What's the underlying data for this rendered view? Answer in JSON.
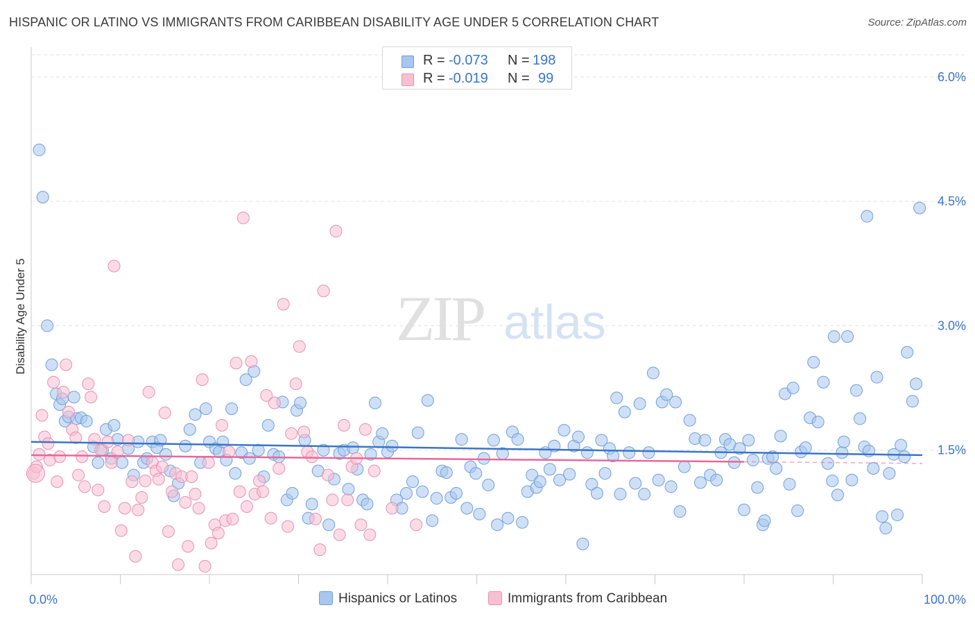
{
  "title": "HISPANIC OR LATINO VS IMMIGRANTS FROM CARIBBEAN DISABILITY AGE UNDER 5 CORRELATION CHART",
  "source": "Source: ZipAtlas.com",
  "watermark": {
    "zip": "ZIP",
    "atlas": "atlas"
  },
  "legend": {
    "rows": [
      {
        "r_label": "R =",
        "r_value": "-0.073",
        "n_label": "N =",
        "n_value": "198",
        "color": "#a8c6ee",
        "border": "#6f9fd8"
      },
      {
        "r_label": "R =",
        "r_value": "-0.019",
        "n_label": "N =",
        "n_value": "99",
        "color": "#f7c0d2",
        "border": "#e890ae"
      }
    ]
  },
  "bottom_legend": [
    {
      "label": "Hispanics or Latinos",
      "color": "#a8c6ee",
      "border": "#6f9fd8"
    },
    {
      "label": "Immigrants from Caribbean",
      "color": "#f7c0d2",
      "border": "#e890ae"
    }
  ],
  "chart_data": {
    "type": "scatter",
    "title": "HISPANIC OR LATINO VS IMMIGRANTS FROM CARIBBEAN DISABILITY AGE UNDER 5 CORRELATION CHART",
    "xlabel": "",
    "ylabel": "Disability Age Under 5",
    "xlim": [
      0,
      100
    ],
    "ylim": [
      0,
      6.3
    ],
    "x_tick_labels": {
      "left": "0.0%",
      "right": "100.0%"
    },
    "y_ticks": [
      {
        "value": 1.5,
        "label": "1.5%"
      },
      {
        "value": 3.0,
        "label": "3.0%"
      },
      {
        "value": 4.5,
        "label": "4.5%"
      },
      {
        "value": 6.0,
        "label": "6.0%"
      }
    ],
    "grid": true,
    "series": [
      {
        "name": "Hispanics or Latinos",
        "color": "#a8c6ee",
        "edge": "#6f9fd8",
        "trend": {
          "x0": 0,
          "y0": 1.6,
          "x1": 100,
          "y1": 1.44,
          "color": "#3a74c8"
        },
        "points": [
          [
            0.9,
            5.12
          ],
          [
            1.3,
            4.55
          ],
          [
            1.8,
            3.0
          ],
          [
            2.3,
            2.53
          ],
          [
            2.8,
            2.18
          ],
          [
            3.2,
            2.05
          ],
          [
            3.5,
            2.12
          ],
          [
            3.8,
            1.85
          ],
          [
            4.2,
            1.9
          ],
          [
            4.8,
            2.14
          ],
          [
            5.1,
            1.88
          ],
          [
            5.6,
            1.89
          ],
          [
            6.2,
            1.85
          ],
          [
            7.0,
            1.54
          ],
          [
            7.5,
            1.35
          ],
          [
            8.0,
            1.5
          ],
          [
            8.4,
            1.75
          ],
          [
            9.0,
            1.4
          ],
          [
            9.3,
            1.8
          ],
          [
            9.7,
            1.63
          ],
          [
            10.2,
            1.35
          ],
          [
            10.9,
            1.52
          ],
          [
            11.5,
            1.2
          ],
          [
            12.0,
            1.6
          ],
          [
            12.6,
            1.35
          ],
          [
            13.0,
            1.4
          ],
          [
            13.6,
            1.6
          ],
          [
            14.1,
            1.53
          ],
          [
            14.5,
            1.62
          ],
          [
            15.1,
            1.45
          ],
          [
            15.6,
            1.25
          ],
          [
            16.0,
            0.95
          ],
          [
            16.5,
            1.1
          ],
          [
            17.3,
            1.55
          ],
          [
            17.8,
            1.75
          ],
          [
            18.4,
            1.93
          ],
          [
            19.0,
            1.35
          ],
          [
            19.6,
            2.0
          ],
          [
            20.0,
            1.6
          ],
          [
            20.7,
            1.52
          ],
          [
            21.1,
            1.48
          ],
          [
            21.5,
            1.6
          ],
          [
            21.9,
            1.38
          ],
          [
            22.5,
            2.0
          ],
          [
            22.9,
            1.22
          ],
          [
            23.6,
            1.47
          ],
          [
            24.1,
            2.35
          ],
          [
            24.5,
            1.4
          ],
          [
            25.0,
            2.45
          ],
          [
            25.5,
            1.5
          ],
          [
            26.1,
            1.18
          ],
          [
            26.6,
            1.8
          ],
          [
            27.2,
            1.45
          ],
          [
            27.8,
            1.42
          ],
          [
            28.2,
            2.08
          ],
          [
            28.7,
            0.9
          ],
          [
            29.3,
            0.98
          ],
          [
            29.8,
            1.98
          ],
          [
            30.2,
            2.07
          ],
          [
            30.7,
            1.62
          ],
          [
            31.1,
            0.68
          ],
          [
            31.5,
            0.85
          ],
          [
            32.2,
            1.25
          ],
          [
            32.8,
            1.5
          ],
          [
            33.4,
            0.6
          ],
          [
            34.0,
            1.15
          ],
          [
            34.6,
            1.46
          ],
          [
            35.1,
            1.5
          ],
          [
            35.6,
            1.03
          ],
          [
            36.1,
            1.53
          ],
          [
            36.6,
            1.27
          ],
          [
            37.2,
            0.9
          ],
          [
            37.7,
            0.85
          ],
          [
            38.1,
            1.45
          ],
          [
            38.6,
            2.07
          ],
          [
            39.0,
            1.6
          ],
          [
            39.4,
            1.7
          ],
          [
            40.0,
            1.48
          ],
          [
            40.5,
            1.55
          ],
          [
            41.0,
            0.9
          ],
          [
            41.6,
            0.8
          ],
          [
            42.1,
            0.98
          ],
          [
            42.8,
            1.12
          ],
          [
            43.4,
            1.71
          ],
          [
            43.9,
            1.0
          ],
          [
            44.5,
            2.1
          ],
          [
            45.0,
            0.65
          ],
          [
            45.5,
            0.92
          ],
          [
            46.1,
            1.25
          ],
          [
            46.6,
            1.23
          ],
          [
            47.1,
            0.93
          ],
          [
            47.7,
            0.98
          ],
          [
            48.3,
            1.63
          ],
          [
            48.9,
            0.8
          ],
          [
            49.3,
            1.3
          ],
          [
            49.9,
            1.22
          ],
          [
            50.3,
            0.73
          ],
          [
            50.8,
            1.4
          ],
          [
            51.3,
            1.08
          ],
          [
            51.9,
            1.62
          ],
          [
            52.3,
            0.6
          ],
          [
            52.9,
            1.46
          ],
          [
            53.5,
            0.68
          ],
          [
            54.0,
            1.72
          ],
          [
            54.6,
            1.63
          ],
          [
            55.1,
            0.63
          ],
          [
            55.7,
            1.0
          ],
          [
            56.2,
            1.2
          ],
          [
            56.7,
            1.05
          ],
          [
            57.1,
            1.12
          ],
          [
            57.7,
            1.47
          ],
          [
            58.2,
            1.27
          ],
          [
            58.7,
            1.55
          ],
          [
            59.3,
            1.14
          ],
          [
            59.8,
            1.74
          ],
          [
            60.4,
            1.21
          ],
          [
            60.9,
            1.55
          ],
          [
            61.4,
            1.66
          ],
          [
            61.9,
            0.37
          ],
          [
            62.4,
            1.47
          ],
          [
            62.9,
            1.09
          ],
          [
            63.5,
            0.98
          ],
          [
            64.0,
            1.62
          ],
          [
            64.4,
            1.22
          ],
          [
            64.9,
            1.52
          ],
          [
            65.3,
            1.43
          ],
          [
            65.7,
            2.13
          ],
          [
            66.1,
            0.97
          ],
          [
            66.6,
            1.96
          ],
          [
            67.1,
            1.47
          ],
          [
            67.8,
            1.1
          ],
          [
            68.3,
            2.06
          ],
          [
            68.8,
            0.97
          ],
          [
            69.3,
            1.47
          ],
          [
            69.8,
            2.43
          ],
          [
            70.4,
            1.14
          ],
          [
            70.8,
            2.08
          ],
          [
            71.3,
            2.17
          ],
          [
            71.8,
            1.06
          ],
          [
            72.3,
            2.08
          ],
          [
            72.8,
            0.76
          ],
          [
            73.3,
            1.3
          ],
          [
            73.9,
            1.86
          ],
          [
            74.5,
            1.64
          ],
          [
            75.1,
            1.11
          ],
          [
            75.6,
            1.62
          ],
          [
            76.2,
            1.2
          ],
          [
            76.9,
            1.14
          ],
          [
            77.4,
            1.47
          ],
          [
            77.9,
            1.63
          ],
          [
            78.4,
            1.57
          ],
          [
            78.9,
            1.35
          ],
          [
            79.5,
            1.52
          ],
          [
            80.0,
            0.78
          ],
          [
            80.5,
            1.62
          ],
          [
            81.0,
            1.38
          ],
          [
            81.5,
            1.05
          ],
          [
            82.1,
            0.6
          ],
          [
            82.7,
            1.4
          ],
          [
            82.3,
            0.65
          ],
          [
            83.2,
            1.42
          ],
          [
            83.6,
            1.28
          ],
          [
            84.1,
            1.67
          ],
          [
            84.6,
            2.18
          ],
          [
            85.1,
            1.09
          ],
          [
            85.5,
            2.25
          ],
          [
            86.0,
            0.77
          ],
          [
            86.4,
            1.48
          ],
          [
            86.9,
            1.53
          ],
          [
            87.4,
            1.89
          ],
          [
            87.8,
            2.56
          ],
          [
            88.3,
            1.84
          ],
          [
            88.9,
            2.32
          ],
          [
            89.4,
            1.34
          ],
          [
            89.9,
            1.13
          ],
          [
            90.5,
            0.96
          ],
          [
            91.0,
            1.47
          ],
          [
            91.2,
            1.6
          ],
          [
            91.6,
            2.87
          ],
          [
            92.1,
            1.14
          ],
          [
            92.6,
            2.22
          ],
          [
            93.0,
            1.88
          ],
          [
            93.5,
            1.54
          ],
          [
            94.0,
            1.49
          ],
          [
            94.5,
            1.28
          ],
          [
            94.9,
            2.38
          ],
          [
            95.5,
            0.7
          ],
          [
            95.9,
            0.56
          ],
          [
            96.3,
            1.22
          ],
          [
            96.8,
            1.45
          ],
          [
            97.2,
            0.72
          ],
          [
            97.6,
            1.56
          ],
          [
            98.0,
            1.42
          ],
          [
            98.3,
            2.68
          ],
          [
            98.9,
            2.09
          ],
          [
            99.3,
            2.3
          ],
          [
            99.7,
            4.42
          ],
          [
            93.8,
            4.32
          ],
          [
            90.1,
            2.87
          ]
        ]
      },
      {
        "name": "Immigrants from Caribbean",
        "color": "#f7c0d2",
        "edge": "#e890ae",
        "trend": {
          "x0": 0,
          "y0": 1.44,
          "x1": 100,
          "y1": 1.34,
          "color": "#e8679a",
          "solid_until": 80
        },
        "points": [
          [
            0.3,
            1.22
          ],
          [
            0.6,
            1.3
          ],
          [
            0.9,
            1.45
          ],
          [
            1.2,
            1.92
          ],
          [
            1.5,
            1.66
          ],
          [
            1.9,
            1.58
          ],
          [
            2.1,
            1.38
          ],
          [
            2.5,
            2.32
          ],
          [
            2.9,
            1.12
          ],
          [
            3.2,
            1.42
          ],
          [
            3.6,
            2.2
          ],
          [
            3.9,
            2.53
          ],
          [
            4.2,
            1.96
          ],
          [
            4.6,
            1.75
          ],
          [
            5.0,
            1.65
          ],
          [
            5.3,
            1.2
          ],
          [
            5.7,
            1.42
          ],
          [
            6.0,
            1.06
          ],
          [
            6.4,
            2.3
          ],
          [
            6.7,
            2.14
          ],
          [
            7.1,
            1.63
          ],
          [
            7.5,
            1.02
          ],
          [
            7.8,
            1.5
          ],
          [
            8.2,
            0.82
          ],
          [
            8.6,
            1.6
          ],
          [
            9.0,
            1.35
          ],
          [
            9.3,
            3.72
          ],
          [
            9.7,
            1.48
          ],
          [
            10.1,
            0.53
          ],
          [
            10.5,
            0.8
          ],
          [
            10.9,
            1.62
          ],
          [
            11.3,
            1.12
          ],
          [
            11.7,
            0.22
          ],
          [
            12.0,
            0.78
          ],
          [
            12.4,
            0.93
          ],
          [
            12.8,
            1.13
          ],
          [
            13.2,
            2.2
          ],
          [
            13.6,
            1.35
          ],
          [
            14.0,
            1.25
          ],
          [
            14.3,
            1.15
          ],
          [
            14.7,
            1.3
          ],
          [
            15.0,
            1.95
          ],
          [
            15.4,
            0.52
          ],
          [
            15.8,
            1.0
          ],
          [
            16.2,
            1.22
          ],
          [
            16.5,
            0.12
          ],
          [
            16.9,
            1.18
          ],
          [
            17.3,
            0.87
          ],
          [
            17.6,
            0.34
          ],
          [
            18.0,
            1.18
          ],
          [
            18.4,
            0.97
          ],
          [
            18.8,
            0.8
          ],
          [
            19.2,
            2.35
          ],
          [
            19.5,
            0.1
          ],
          [
            19.9,
            1.35
          ],
          [
            20.2,
            0.38
          ],
          [
            20.6,
            0.6
          ],
          [
            21.0,
            0.5
          ],
          [
            21.4,
            1.8
          ],
          [
            21.8,
            0.65
          ],
          [
            22.2,
            1.48
          ],
          [
            22.6,
            0.67
          ],
          [
            23.0,
            2.55
          ],
          [
            23.4,
            1.0
          ],
          [
            23.8,
            4.3
          ],
          [
            24.2,
            0.82
          ],
          [
            24.7,
            2.57
          ],
          [
            25.1,
            0.97
          ],
          [
            25.6,
            1.13
          ],
          [
            26.0,
            1.0
          ],
          [
            26.4,
            2.16
          ],
          [
            26.9,
            0.68
          ],
          [
            27.3,
            2.07
          ],
          [
            27.8,
            1.28
          ],
          [
            28.3,
            3.26
          ],
          [
            28.8,
            0.58
          ],
          [
            29.2,
            1.7
          ],
          [
            29.7,
            2.3
          ],
          [
            30.1,
            2.75
          ],
          [
            30.6,
            1.72
          ],
          [
            31.0,
            1.48
          ],
          [
            31.5,
            1.42
          ],
          [
            31.9,
            0.67
          ],
          [
            32.4,
            0.3
          ],
          [
            32.8,
            3.42
          ],
          [
            33.3,
            1.2
          ],
          [
            33.8,
            0.9
          ],
          [
            34.2,
            4.14
          ],
          [
            34.6,
            0.48
          ],
          [
            35.1,
            1.8
          ],
          [
            35.5,
            0.9
          ],
          [
            36.0,
            1.3
          ],
          [
            36.5,
            1.4
          ],
          [
            37.0,
            0.6
          ],
          [
            37.5,
            1.75
          ],
          [
            38.0,
            0.48
          ],
          [
            38.5,
            1.25
          ],
          [
            40.5,
            0.8
          ],
          [
            43.2,
            0.6
          ]
        ]
      }
    ]
  }
}
